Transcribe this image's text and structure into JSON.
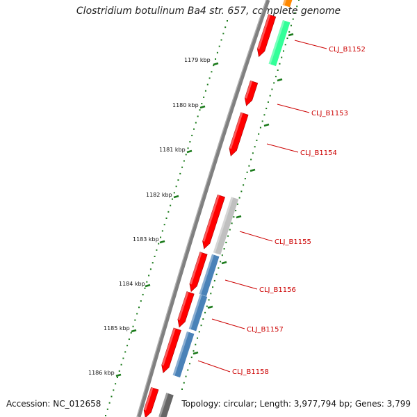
{
  "title": "Clostridium botulinum Ba4 str. 657, complete genome",
  "footer": {
    "accession": "Accession: NC_012658",
    "topology": "Topology: circular; Length: 3,977,794 bp; Genes: 3,799"
  },
  "colors": {
    "backbone": "#808080",
    "forward_gene": "#ff0000",
    "tick": "#1a7a1a",
    "label_line": "#cc0000",
    "feature_green": "#33ff99",
    "feature_gray": "#c0c0c0",
    "feature_blue": "#4a82b8",
    "feature_orange": "#ff8800",
    "feature_darkgray": "#666666"
  },
  "scale_labels": [
    "1179 kbp",
    "1180 kbp",
    "1181 kbp",
    "1182 kbp",
    "1183 kbp",
    "1184 kbp",
    "1185 kbp",
    "1186 kbp"
  ],
  "gene_labels": [
    "CLJ_B1152",
    "CLJ_B1153",
    "CLJ_B1154",
    "CLJ_B1155",
    "CLJ_B1156",
    "CLJ_B1157",
    "CLJ_B1158"
  ],
  "features": [
    {
      "name": "CLJ_B1152",
      "type": "forward_gene"
    },
    {
      "name": "CLJ_B1152",
      "type": "feature_green"
    },
    {
      "name": "CLJ_B1153",
      "type": "forward_gene"
    },
    {
      "name": "CLJ_B1154",
      "type": "forward_gene"
    },
    {
      "name": "CLJ_B1155",
      "type": "forward_gene"
    },
    {
      "name": "CLJ_B1155",
      "type": "feature_gray"
    },
    {
      "name": "CLJ_B1156",
      "type": "forward_gene"
    },
    {
      "name": "CLJ_B1156",
      "type": "feature_blue"
    },
    {
      "name": "CLJ_B1157",
      "type": "forward_gene"
    },
    {
      "name": "CLJ_B1157",
      "type": "feature_blue"
    },
    {
      "name": "CLJ_B1158",
      "type": "forward_gene"
    },
    {
      "name": "CLJ_B1158",
      "type": "feature_blue"
    }
  ]
}
